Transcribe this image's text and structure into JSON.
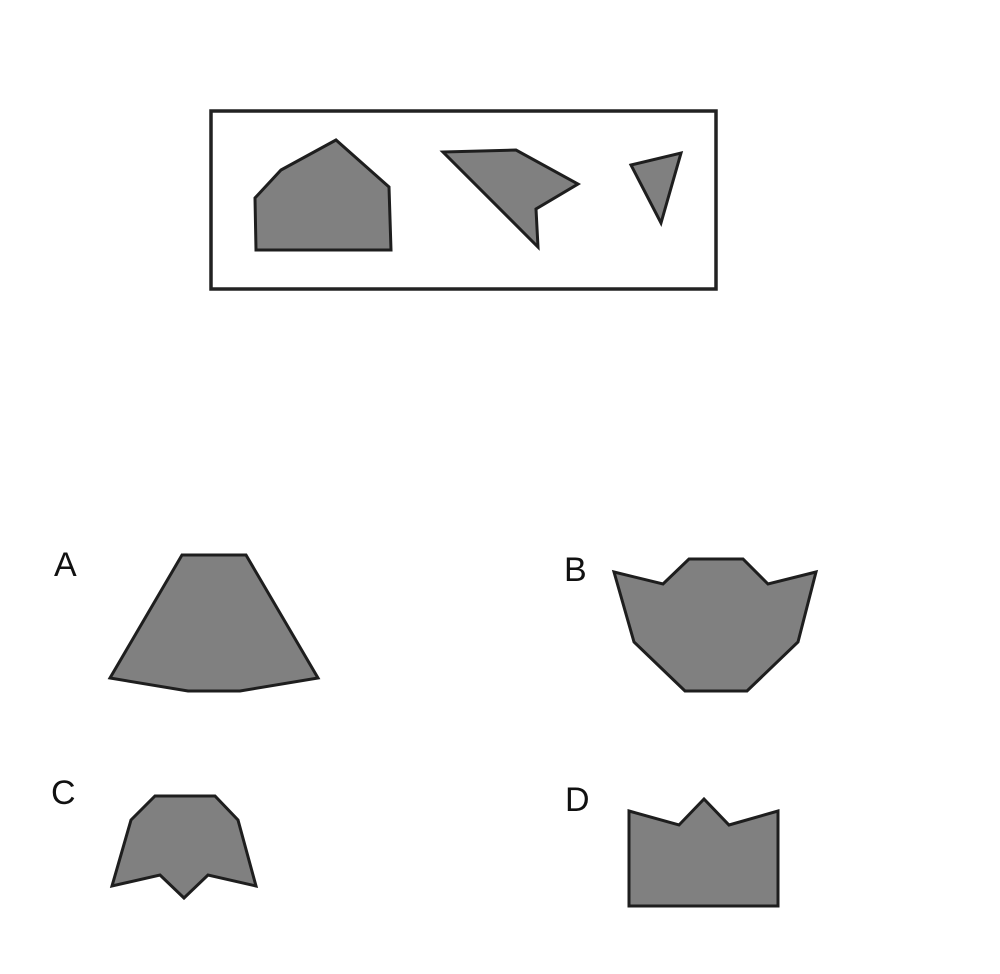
{
  "puzzle": {
    "pieces": [
      "pentagon-piece",
      "arrow-piece",
      "triangle-piece"
    ],
    "options": [
      {
        "label": "A",
        "shape": "trapezoid"
      },
      {
        "label": "B",
        "shape": "crown-cup"
      },
      {
        "label": "C",
        "shape": "notched-bell"
      },
      {
        "label": "D",
        "shape": "crowned-rectangle"
      }
    ]
  },
  "colors": {
    "fill": "#808080",
    "stroke": "#1e1e1e",
    "frame": "#222222"
  }
}
